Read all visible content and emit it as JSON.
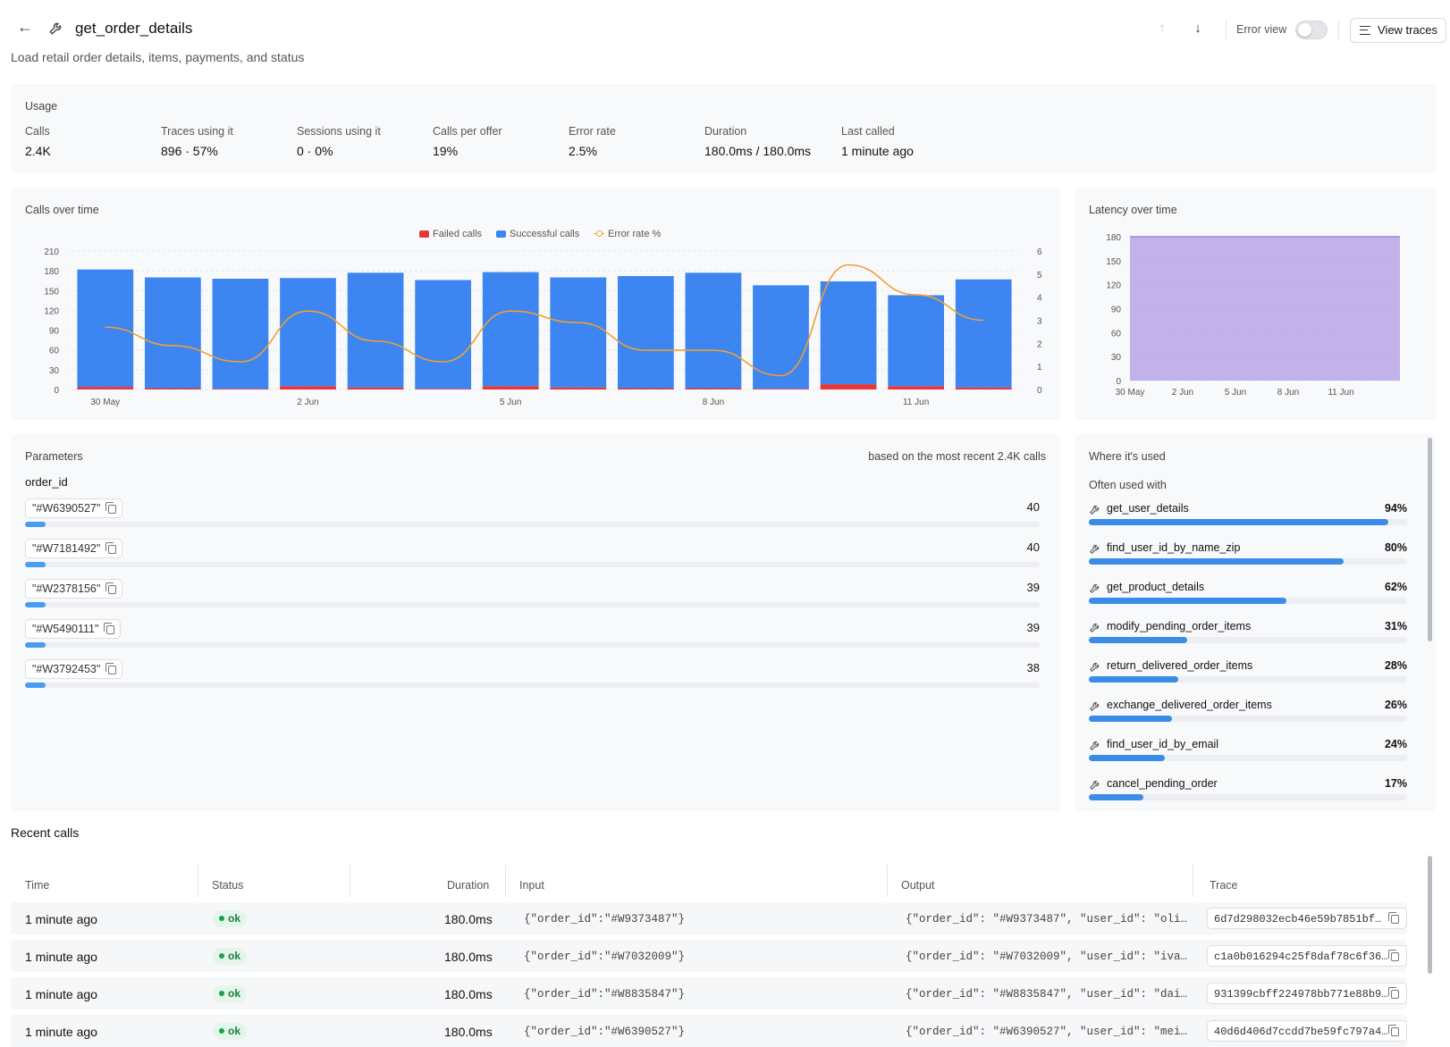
{
  "header": {
    "title": "get_order_details",
    "subtitle": "Load retail order details, items, payments, and status",
    "error_view_label": "Error view",
    "view_traces_label": "View traces",
    "icons": {
      "back": "arrow-left-icon",
      "tool": "wrench-icon",
      "up": "arrow-up-icon",
      "down": "arrow-down-icon",
      "list": "list-icon"
    }
  },
  "usage": {
    "title": "Usage",
    "stats": [
      {
        "label": "Calls",
        "value": "2.4K"
      },
      {
        "label": "Traces using it",
        "value": "896 · 57%"
      },
      {
        "label": "Sessions using it",
        "value": "0 · 0%"
      },
      {
        "label": "Calls per offer",
        "value": "19%"
      },
      {
        "label": "Error rate",
        "value": "2.5%"
      },
      {
        "label": "Duration",
        "value": "180.0ms / 180.0ms"
      },
      {
        "label": "Last called",
        "value": "1 minute ago"
      }
    ]
  },
  "calls_chart": {
    "title": "Calls over time",
    "legend": {
      "failed": "Failed calls",
      "success": "Successful calls",
      "error_rate": "Error rate %"
    }
  },
  "latency_chart": {
    "title": "Latency over time"
  },
  "chart_data": [
    {
      "type": "bar",
      "title": "Calls over time",
      "categories": [
        "30 May",
        "31 May",
        "1 Jun",
        "2 Jun",
        "3 Jun",
        "4 Jun",
        "5 Jun",
        "6 Jun",
        "7 Jun",
        "8 Jun",
        "9 Jun",
        "10 Jun",
        "11 Jun",
        "12 Jun"
      ],
      "x_tick_labels": [
        "30 May",
        "2 Jun",
        "5 Jun",
        "8 Jun",
        "11 Jun"
      ],
      "y_ticks": [
        "0",
        "30",
        "60",
        "90",
        "120",
        "150",
        "180",
        "210"
      ],
      "y2_ticks": [
        "0",
        "1",
        "2",
        "3",
        "4",
        "5",
        "6"
      ],
      "ylim": [
        0,
        210
      ],
      "y2lim": [
        0,
        6
      ],
      "stacked": true,
      "series": [
        {
          "name": "Failed calls",
          "values": [
            4,
            2,
            1,
            5,
            3,
            1,
            5,
            3,
            2,
            2,
            1,
            8,
            5,
            3
          ],
          "color": "#e5383b"
        },
        {
          "name": "Successful calls",
          "values": [
            178,
            168,
            167,
            164,
            174,
            165,
            173,
            167,
            170,
            175,
            157,
            156,
            138,
            164
          ],
          "color": "#3d85f0"
        },
        {
          "name": "Error rate %",
          "type": "line",
          "axis": "right",
          "values": [
            2.7,
            1.9,
            1.2,
            3.4,
            2.1,
            1.2,
            3.4,
            2.9,
            1.7,
            1.7,
            0.6,
            5.4,
            4.1,
            3.0
          ],
          "color": "#f0a030"
        }
      ],
      "grid": true,
      "legend_position": "top-center"
    },
    {
      "type": "area",
      "title": "Latency over time",
      "x_tick_labels": [
        "30 May",
        "2 Jun",
        "5 Jun",
        "8 Jun",
        "11 Jun"
      ],
      "y_ticks": [
        "0",
        "30",
        "60",
        "90",
        "120",
        "150",
        "180"
      ],
      "ylim": [
        0,
        180
      ],
      "x": [
        "30 May",
        "12 Jun"
      ],
      "values": [
        180,
        180
      ],
      "color": "#b9a6e6",
      "grid": true
    }
  ],
  "parameters": {
    "title": "Parameters",
    "note": "based on the most recent 2.4K calls",
    "param_name": "order_id",
    "values": [
      {
        "value": "\"#W6390527\"",
        "count": "40",
        "share": 0.02
      },
      {
        "value": "\"#W7181492\"",
        "count": "40",
        "share": 0.02
      },
      {
        "value": "\"#W2378156\"",
        "count": "39",
        "share": 0.02
      },
      {
        "value": "\"#W5490111\"",
        "count": "39",
        "share": 0.02
      },
      {
        "value": "\"#W3792453\"",
        "count": "38",
        "share": 0.02
      }
    ]
  },
  "where_used": {
    "title": "Where it's used",
    "subtitle": "Often used with",
    "items": [
      {
        "name": "get_user_details",
        "pct": "94%",
        "value": 0.94
      },
      {
        "name": "find_user_id_by_name_zip",
        "pct": "80%",
        "value": 0.8
      },
      {
        "name": "get_product_details",
        "pct": "62%",
        "value": 0.62
      },
      {
        "name": "modify_pending_order_items",
        "pct": "31%",
        "value": 0.31
      },
      {
        "name": "return_delivered_order_items",
        "pct": "28%",
        "value": 0.28
      },
      {
        "name": "exchange_delivered_order_items",
        "pct": "26%",
        "value": 0.26
      },
      {
        "name": "find_user_id_by_email",
        "pct": "24%",
        "value": 0.24
      },
      {
        "name": "cancel_pending_order",
        "pct": "17%",
        "value": 0.17
      }
    ]
  },
  "recent_calls": {
    "title": "Recent calls",
    "columns": [
      "Time",
      "Status",
      "Duration",
      "Input",
      "Output",
      "Trace"
    ],
    "rows": [
      {
        "time": "1 minute ago",
        "status": "ok",
        "duration": "180.0ms",
        "input": "{\"order_id\":\"#W9373487\"}",
        "output": "{\"order_id\": \"#W9373487\", \"user_id\": \"oli…",
        "trace": "6d7d298032ecb46e59b7851bf…"
      },
      {
        "time": "1 minute ago",
        "status": "ok",
        "duration": "180.0ms",
        "input": "{\"order_id\":\"#W7032009\"}",
        "output": "{\"order_id\": \"#W7032009\", \"user_id\": \"iva…",
        "trace": "c1a0b016294c25f8daf78c6f36…"
      },
      {
        "time": "1 minute ago",
        "status": "ok",
        "duration": "180.0ms",
        "input": "{\"order_id\":\"#W8835847\"}",
        "output": "{\"order_id\": \"#W8835847\", \"user_id\": \"dai…",
        "trace": "931399cbff224978bb771e88b9…"
      },
      {
        "time": "1 minute ago",
        "status": "ok",
        "duration": "180.0ms",
        "input": "{\"order_id\":\"#W6390527\"}",
        "output": "{\"order_id\": \"#W6390527\", \"user_id\": \"mei…",
        "trace": "40d6d406d7ccdd7be59fc797a4…"
      }
    ]
  }
}
